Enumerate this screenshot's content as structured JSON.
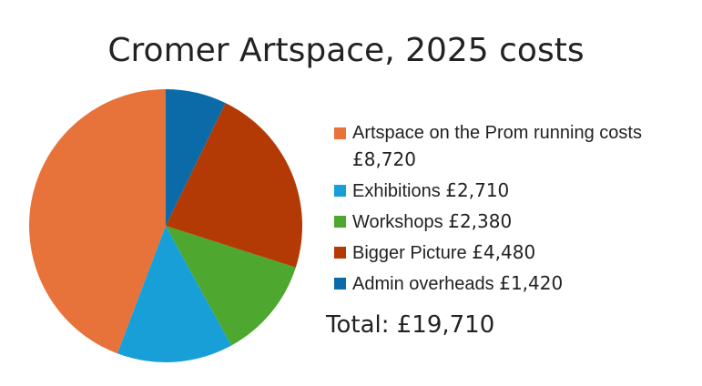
{
  "chart_data": {
    "type": "pie",
    "title": "Cromer Artspace, 2025 costs",
    "series": [
      {
        "name": "Artspace on the Prom running costs",
        "color": "#e8733a",
        "values": [
          8720
        ],
        "value_labels": [
          "£8,720"
        ]
      },
      {
        "name": "Exhibitions",
        "color": "#199fd8",
        "values": [
          2710
        ],
        "value_labels": [
          "£2,710"
        ]
      },
      {
        "name": "Workshops",
        "color": "#4ea72e",
        "values": [
          2380
        ],
        "value_labels": [
          "£2,380"
        ]
      },
      {
        "name": "Bigger Picture",
        "color": "#b33a05",
        "values": [
          4480
        ],
        "value_labels": [
          "£4,480"
        ]
      },
      {
        "name": "Admin overheads",
        "color": "#0b6aa8",
        "values": [
          1420
        ],
        "value_labels": [
          "£1,420"
        ]
      }
    ],
    "direction": "counterclockwise",
    "annotations": [
      "Total: £19,710"
    ]
  }
}
